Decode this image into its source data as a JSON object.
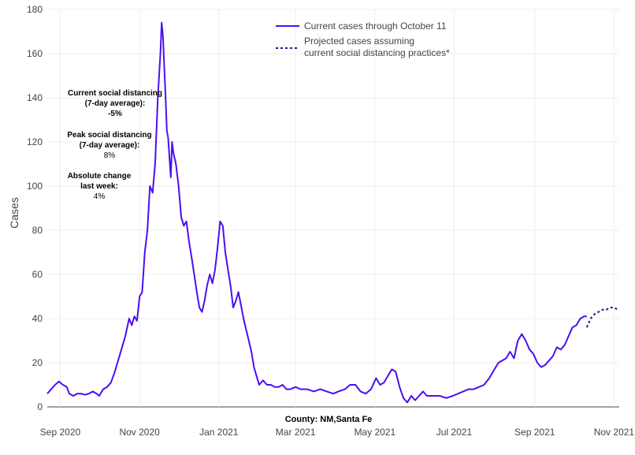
{
  "chart_data": {
    "type": "line",
    "title": "",
    "xlabel": "County: NM,Santa Fe",
    "ylabel": "Cases",
    "ylim": [
      0,
      180
    ],
    "yticks": [
      0,
      20,
      40,
      60,
      80,
      100,
      120,
      140,
      160,
      180
    ],
    "xlim": [
      "2020-08-22",
      "2021-11-05"
    ],
    "xticks": [
      {
        "date": "2020-09-01",
        "label": "Sep 2020"
      },
      {
        "date": "2020-11-01",
        "label": "Nov 2020"
      },
      {
        "date": "2021-01-01",
        "label": "Jan 2021"
      },
      {
        "date": "2021-03-01",
        "label": "Mar 2021"
      },
      {
        "date": "2021-05-01",
        "label": "May 2021"
      },
      {
        "date": "2021-07-01",
        "label": "Jul 2021"
      },
      {
        "date": "2021-09-01",
        "label": "Sep 2021"
      },
      {
        "date": "2021-11-01",
        "label": "Nov 2021"
      }
    ],
    "grid": true,
    "legend_position": "top-right",
    "series": [
      {
        "name": "Current cases through October 11",
        "style": "solid",
        "color": "#4b0ff0",
        "points": [
          [
            "2020-08-22",
            6
          ],
          [
            "2020-08-25",
            8
          ],
          [
            "2020-08-28",
            10
          ],
          [
            "2020-08-31",
            11.5
          ],
          [
            "2020-09-03",
            10
          ],
          [
            "2020-09-06",
            9
          ],
          [
            "2020-09-08",
            6
          ],
          [
            "2020-09-11",
            5
          ],
          [
            "2020-09-14",
            6
          ],
          [
            "2020-09-17",
            6
          ],
          [
            "2020-09-20",
            5.5
          ],
          [
            "2020-09-23",
            6
          ],
          [
            "2020-09-26",
            7
          ],
          [
            "2020-09-29",
            6
          ],
          [
            "2020-10-01",
            5
          ],
          [
            "2020-10-04",
            8
          ],
          [
            "2020-10-07",
            9
          ],
          [
            "2020-10-10",
            11
          ],
          [
            "2020-10-13",
            16
          ],
          [
            "2020-10-15",
            20
          ],
          [
            "2020-10-18",
            26
          ],
          [
            "2020-10-21",
            32
          ],
          [
            "2020-10-24",
            40
          ],
          [
            "2020-10-26",
            37
          ],
          [
            "2020-10-28",
            41
          ],
          [
            "2020-10-30",
            39
          ],
          [
            "2020-11-01",
            50
          ],
          [
            "2020-11-03",
            52
          ],
          [
            "2020-11-05",
            70
          ],
          [
            "2020-11-07",
            80
          ],
          [
            "2020-11-09",
            100
          ],
          [
            "2020-11-11",
            97
          ],
          [
            "2020-11-13",
            110
          ],
          [
            "2020-11-15",
            140
          ],
          [
            "2020-11-17",
            160
          ],
          [
            "2020-11-18",
            174
          ],
          [
            "2020-11-19",
            168
          ],
          [
            "2020-11-21",
            140
          ],
          [
            "2020-11-22",
            125
          ],
          [
            "2020-11-23",
            122
          ],
          [
            "2020-11-25",
            104
          ],
          [
            "2020-11-26",
            120
          ],
          [
            "2020-11-27",
            115
          ],
          [
            "2020-11-29",
            110
          ],
          [
            "2020-12-01",
            100
          ],
          [
            "2020-12-03",
            86
          ],
          [
            "2020-12-05",
            82
          ],
          [
            "2020-12-07",
            84
          ],
          [
            "2020-12-09",
            75
          ],
          [
            "2020-12-11",
            68
          ],
          [
            "2020-12-13",
            60
          ],
          [
            "2020-12-15",
            52
          ],
          [
            "2020-12-17",
            45
          ],
          [
            "2020-12-19",
            43
          ],
          [
            "2020-12-21",
            48
          ],
          [
            "2020-12-23",
            55
          ],
          [
            "2020-12-25",
            60
          ],
          [
            "2020-12-27",
            56
          ],
          [
            "2020-12-29",
            62
          ],
          [
            "2020-12-31",
            72
          ],
          [
            "2021-01-02",
            84
          ],
          [
            "2021-01-04",
            82
          ],
          [
            "2021-01-06",
            70
          ],
          [
            "2021-01-08",
            62
          ],
          [
            "2021-01-10",
            55
          ],
          [
            "2021-01-12",
            45
          ],
          [
            "2021-01-14",
            48
          ],
          [
            "2021-01-16",
            52
          ],
          [
            "2021-01-18",
            46
          ],
          [
            "2021-01-20",
            40
          ],
          [
            "2021-01-22",
            35
          ],
          [
            "2021-01-24",
            30
          ],
          [
            "2021-01-26",
            25
          ],
          [
            "2021-01-28",
            18
          ],
          [
            "2021-01-30",
            14
          ],
          [
            "2021-02-01",
            10
          ],
          [
            "2021-02-04",
            12
          ],
          [
            "2021-02-07",
            10
          ],
          [
            "2021-02-10",
            10
          ],
          [
            "2021-02-13",
            9
          ],
          [
            "2021-02-16",
            9
          ],
          [
            "2021-02-19",
            10
          ],
          [
            "2021-02-22",
            8
          ],
          [
            "2021-02-25",
            8
          ],
          [
            "2021-03-01",
            9
          ],
          [
            "2021-03-05",
            8
          ],
          [
            "2021-03-10",
            8
          ],
          [
            "2021-03-15",
            7
          ],
          [
            "2021-03-20",
            8
          ],
          [
            "2021-03-25",
            7
          ],
          [
            "2021-03-30",
            6
          ],
          [
            "2021-04-03",
            7
          ],
          [
            "2021-04-08",
            8
          ],
          [
            "2021-04-12",
            10
          ],
          [
            "2021-04-16",
            10
          ],
          [
            "2021-04-20",
            7
          ],
          [
            "2021-04-24",
            6
          ],
          [
            "2021-04-28",
            8
          ],
          [
            "2021-05-02",
            13
          ],
          [
            "2021-05-05",
            10
          ],
          [
            "2021-05-08",
            11
          ],
          [
            "2021-05-11",
            14
          ],
          [
            "2021-05-14",
            17
          ],
          [
            "2021-05-17",
            16
          ],
          [
            "2021-05-20",
            9
          ],
          [
            "2021-05-23",
            4
          ],
          [
            "2021-05-26",
            2
          ],
          [
            "2021-05-29",
            5
          ],
          [
            "2021-06-01",
            3
          ],
          [
            "2021-06-04",
            5
          ],
          [
            "2021-06-07",
            7
          ],
          [
            "2021-06-10",
            5
          ],
          [
            "2021-06-15",
            5
          ],
          [
            "2021-06-20",
            5
          ],
          [
            "2021-06-25",
            4
          ],
          [
            "2021-06-30",
            5
          ],
          [
            "2021-07-04",
            6
          ],
          [
            "2021-07-08",
            7
          ],
          [
            "2021-07-12",
            8
          ],
          [
            "2021-07-16",
            8
          ],
          [
            "2021-07-20",
            9
          ],
          [
            "2021-07-24",
            10
          ],
          [
            "2021-07-28",
            13
          ],
          [
            "2021-08-01",
            17
          ],
          [
            "2021-08-04",
            20
          ],
          [
            "2021-08-07",
            21
          ],
          [
            "2021-08-10",
            22
          ],
          [
            "2021-08-13",
            25
          ],
          [
            "2021-08-16",
            22
          ],
          [
            "2021-08-19",
            30
          ],
          [
            "2021-08-22",
            33
          ],
          [
            "2021-08-25",
            30
          ],
          [
            "2021-08-28",
            26
          ],
          [
            "2021-08-31",
            24
          ],
          [
            "2021-09-03",
            20
          ],
          [
            "2021-09-06",
            18
          ],
          [
            "2021-09-09",
            19
          ],
          [
            "2021-09-12",
            21
          ],
          [
            "2021-09-15",
            23
          ],
          [
            "2021-09-18",
            27
          ],
          [
            "2021-09-21",
            26
          ],
          [
            "2021-09-24",
            28
          ],
          [
            "2021-09-27",
            32
          ],
          [
            "2021-09-30",
            36
          ],
          [
            "2021-10-03",
            37
          ],
          [
            "2021-10-06",
            40
          ],
          [
            "2021-10-09",
            41
          ],
          [
            "2021-10-11",
            41
          ]
        ]
      },
      {
        "name": "Projected cases assuming current social distancing practices*",
        "style": "dotted",
        "color": "#1a1a8a",
        "points": [
          [
            "2021-10-11",
            36
          ],
          [
            "2021-10-14",
            40
          ],
          [
            "2021-10-17",
            42
          ],
          [
            "2021-10-20",
            43
          ],
          [
            "2021-10-23",
            44
          ],
          [
            "2021-10-26",
            44
          ],
          [
            "2021-10-29",
            45
          ],
          [
            "2021-11-01",
            45
          ],
          [
            "2021-11-04",
            44
          ]
        ]
      }
    ],
    "annotations": [
      {
        "title": "Current social distancing (7-day average):",
        "value": "-5%",
        "color": "#add8e6"
      },
      {
        "title": "Peak social distancing (7-day average):",
        "value": "8%",
        "color": "#5ef08a"
      },
      {
        "title": "Absolute change last week:",
        "value": "4%",
        "color": "#ffd700"
      }
    ]
  }
}
